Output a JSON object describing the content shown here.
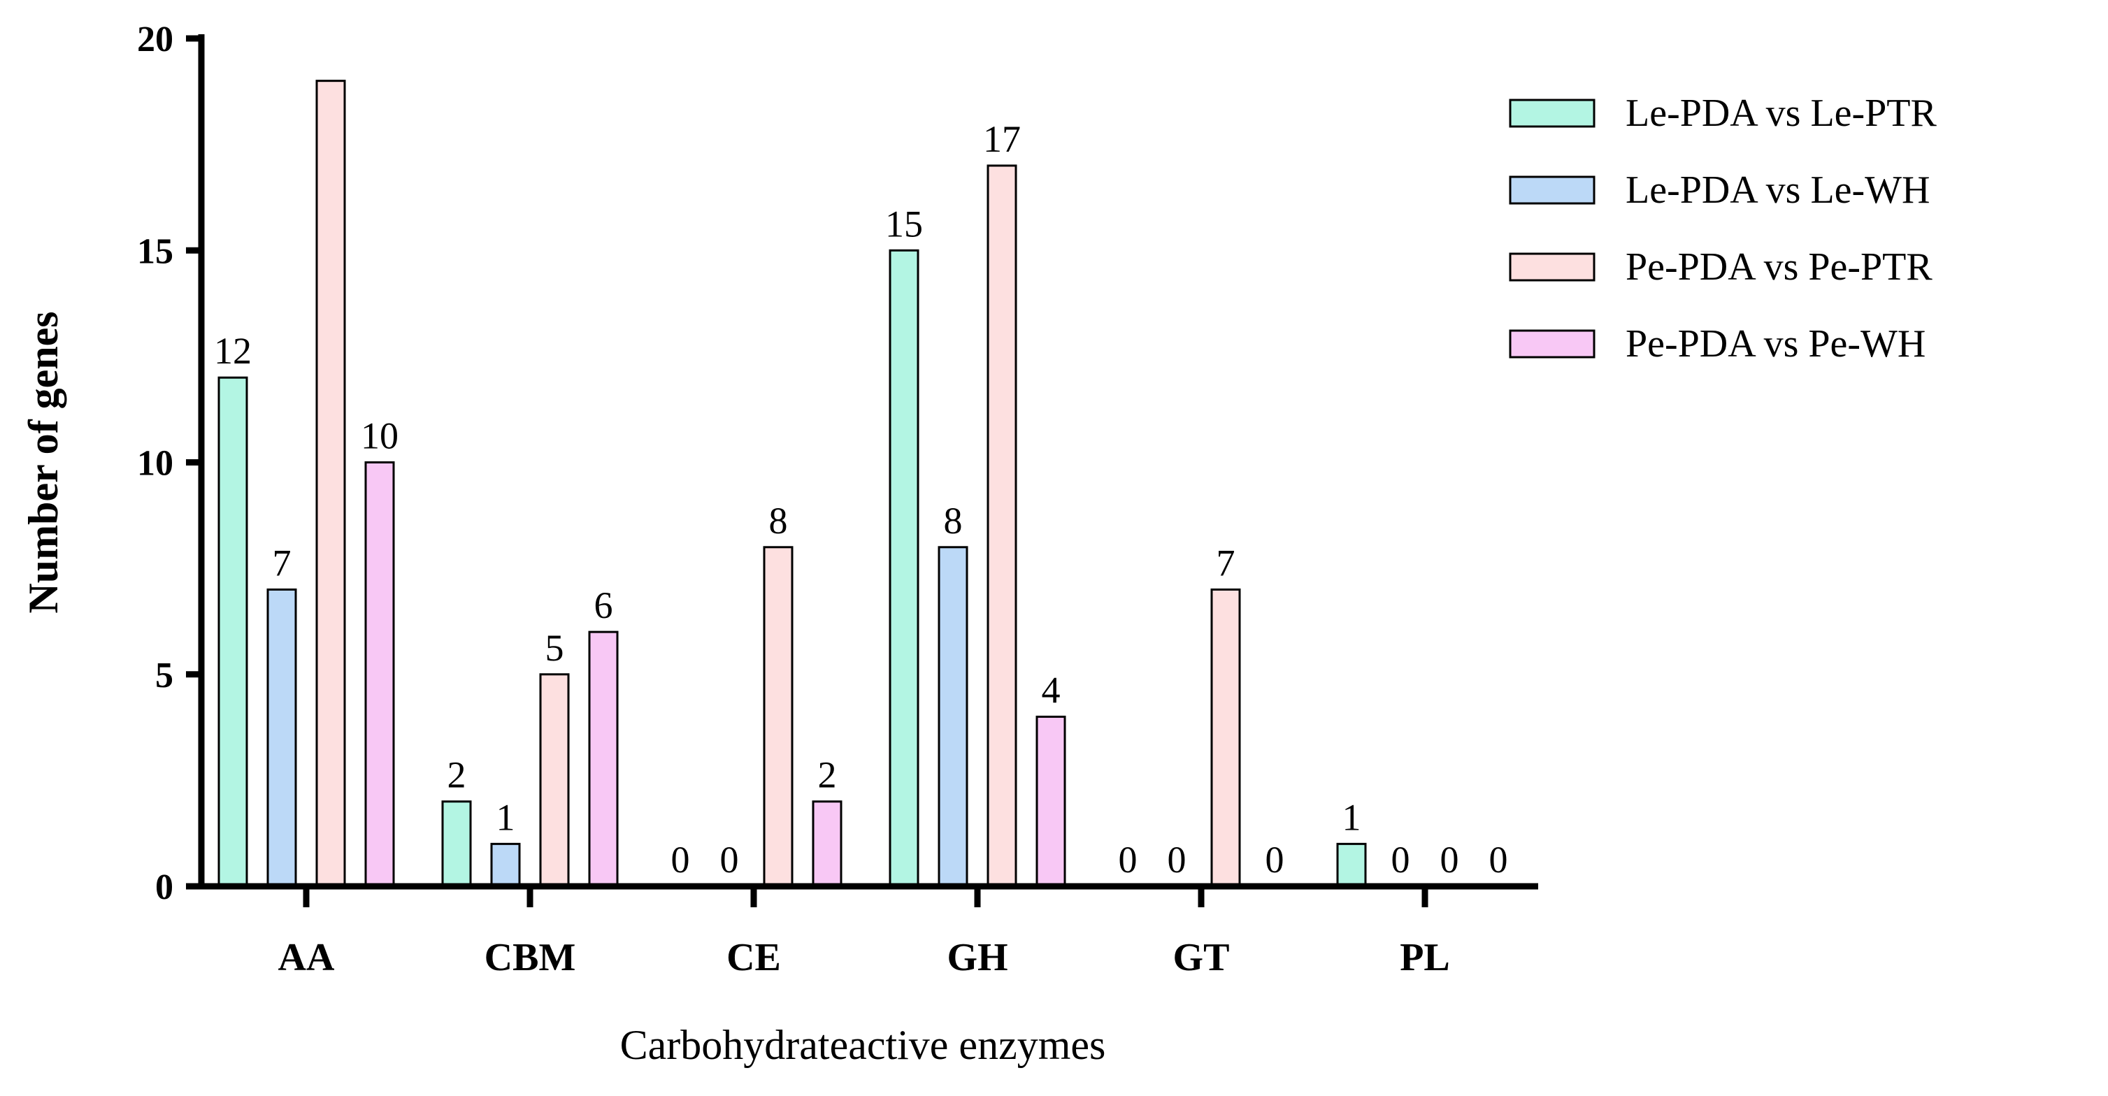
{
  "chart_data": {
    "type": "bar",
    "title": "",
    "xlabel": "Carbohydrateactive enzymes",
    "ylabel": "Number of genes",
    "ylim": [
      0,
      20
    ],
    "yticks": [
      0,
      5,
      10,
      15,
      20
    ],
    "grid": false,
    "legend_position": "top-right",
    "categories": [
      "AA",
      "CBM",
      "CE",
      "GH",
      "GT",
      "PL"
    ],
    "series": [
      {
        "name": "Le-PDA vs Le-PTR",
        "color": "#b3f5e3",
        "values": [
          12,
          2,
          0,
          15,
          0,
          1
        ]
      },
      {
        "name": "Le-PDA vs Le-WH",
        "color": "#bcd9f7",
        "values": [
          7,
          1,
          0,
          8,
          0,
          0
        ]
      },
      {
        "name": "Pe-PDA vs Pe-PTR",
        "color": "#fde0e0",
        "values": [
          19,
          5,
          8,
          17,
          7,
          0
        ]
      },
      {
        "name": "Pe-PDA vs Pe-WH",
        "color": "#f8c8f5",
        "values": [
          10,
          6,
          2,
          4,
          0,
          0
        ]
      }
    ],
    "data_labels": [
      [
        "12",
        "2",
        "0",
        "15",
        "0",
        "1"
      ],
      [
        "7",
        "1",
        "0",
        "8",
        "0",
        "0"
      ],
      [
        "",
        "5",
        "8",
        "17",
        "7",
        "0"
      ],
      [
        "10",
        "6",
        "2",
        "4",
        "0",
        "0"
      ]
    ]
  }
}
